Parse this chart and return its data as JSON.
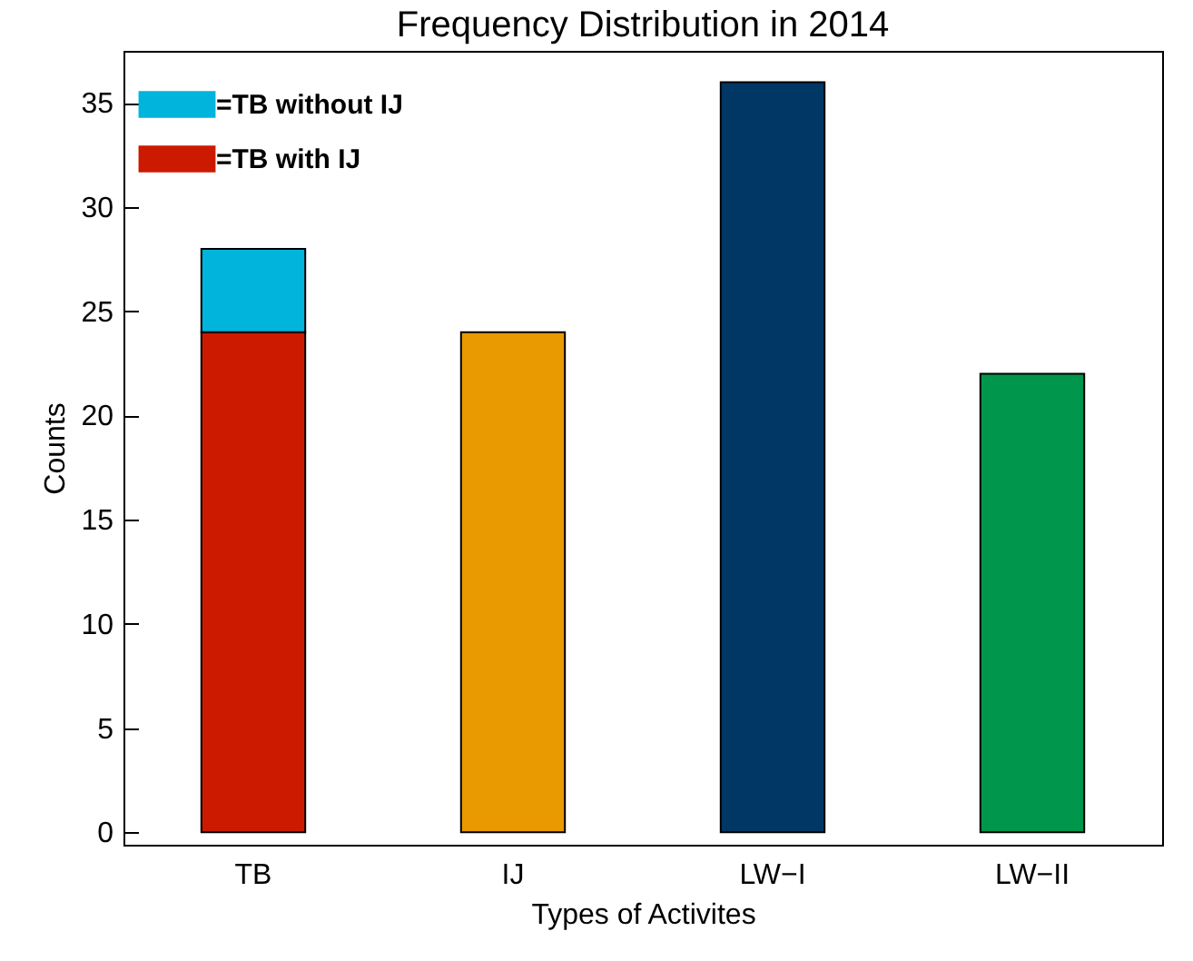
{
  "chart_data": {
    "type": "bar",
    "title": "Frequency Distribution in 2014",
    "xlabel": "Types of Activites",
    "ylabel": "Counts",
    "categories": [
      "TB",
      "IJ",
      "LW−I",
      "LW−II"
    ],
    "stacked": true,
    "series": [
      {
        "name": "=TB with IJ",
        "color": "#cc1a00",
        "values": [
          24,
          null,
          null,
          null
        ]
      },
      {
        "name": "=TB without IJ",
        "color": "#00b4dc",
        "values": [
          4,
          null,
          null,
          null
        ]
      },
      {
        "colors": [
          null,
          "#e89a00",
          "#003764",
          "#00964b"
        ],
        "values": [
          null,
          24,
          36,
          22
        ]
      }
    ],
    "ylim": [
      -0.6,
      37.5
    ],
    "yticks": [
      0,
      5,
      10,
      15,
      20,
      25,
      30,
      35
    ],
    "grid": false,
    "legend": "top left"
  }
}
